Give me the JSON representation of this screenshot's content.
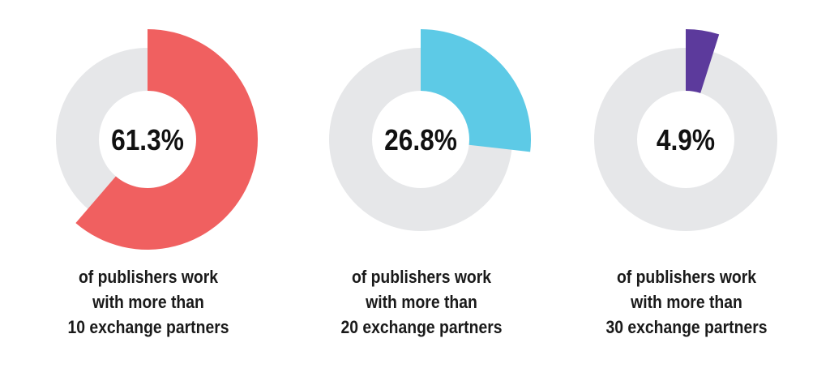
{
  "chart_data": [
    {
      "type": "pie",
      "label": "61.3%",
      "values": [
        61.3,
        38.7
      ],
      "colors": [
        "#f06060",
        "#e6e7e9"
      ],
      "caption": [
        "of publishers work",
        "with more than",
        "10 exchange partners"
      ]
    },
    {
      "type": "pie",
      "label": "26.8%",
      "values": [
        26.8,
        73.2
      ],
      "colors": [
        "#5dcae6",
        "#e6e7e9"
      ],
      "caption": [
        "of publishers work",
        "with more than",
        "20 exchange partners"
      ]
    },
    {
      "type": "pie",
      "label": "4.9%",
      "values": [
        4.9,
        95.1
      ],
      "colors": [
        "#5c3a9c",
        "#e6e7e9"
      ],
      "caption": [
        "of publishers work",
        "with more than",
        "30 exchange partners"
      ]
    }
  ]
}
